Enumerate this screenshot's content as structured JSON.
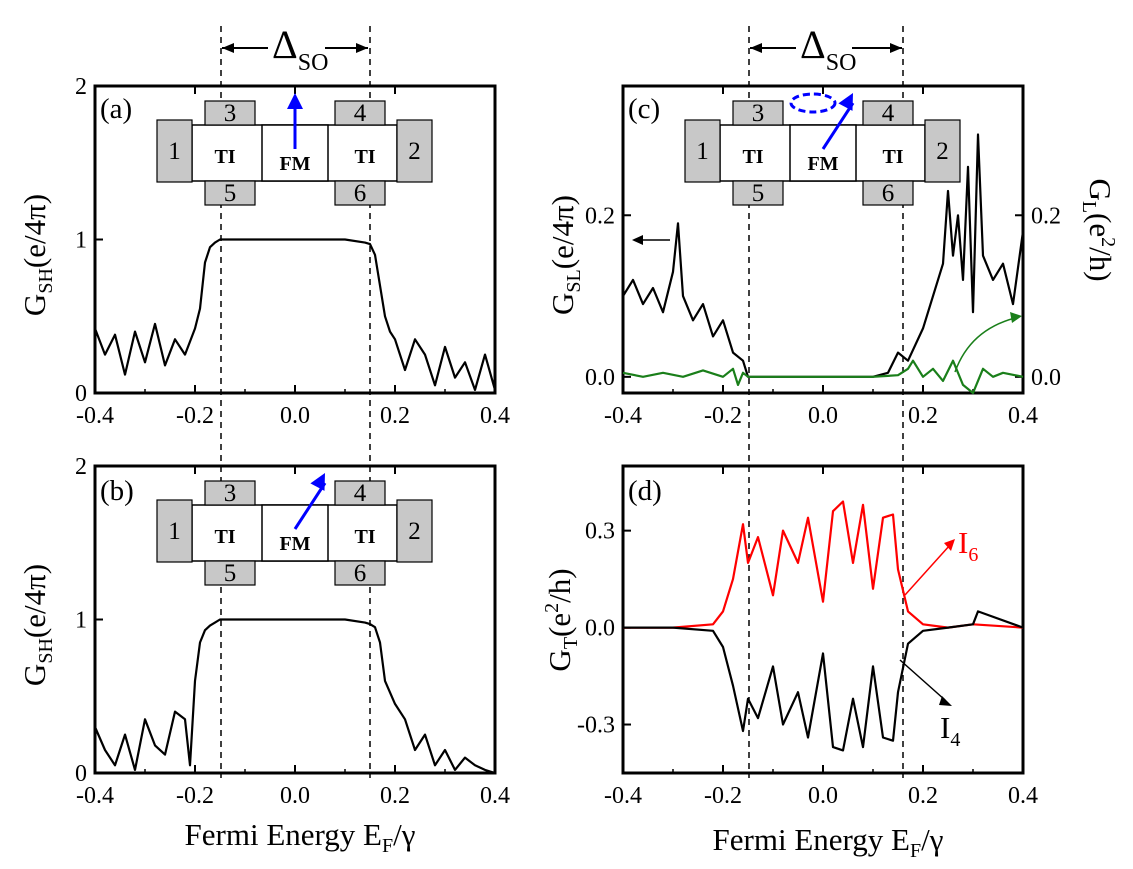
{
  "colors": {
    "black": "#000000",
    "red": "#ff0000",
    "green": "#1a7f1a",
    "blue": "#0000ff",
    "box_gray": "#c8c8c8"
  },
  "delta_so": {
    "symbol": "Δ",
    "sub": "SO"
  },
  "x_axis": {
    "label_main": "Fermi Energy E",
    "label_sub": "F",
    "label_tail": "/γ",
    "ticks": [
      "-0.4",
      "-0.2",
      "0.0",
      "0.2",
      "0.4"
    ]
  },
  "inset": {
    "terminals": [
      "1",
      "2",
      "3",
      "4",
      "5",
      "6"
    ],
    "region_ti": "TI",
    "region_fm": "FM",
    "arrow_icon": "magnetization-arrow-icon"
  },
  "panels": {
    "a": {
      "label": "(a)",
      "y_main": "G",
      "y_sub": "SH",
      "y_tail": "(e/4π)",
      "yticks": [
        "0",
        "1",
        "2"
      ]
    },
    "b": {
      "label": "(b)",
      "y_main": "G",
      "y_sub": "SH",
      "y_tail": "(e/4π)",
      "yticks": [
        "0",
        "1",
        "2"
      ]
    },
    "c": {
      "label": "(c)",
      "y_main": "G",
      "y_sub": "SL",
      "y_tail": "(e/4π)",
      "yticks": [
        "0.0",
        "0.2"
      ],
      "y2_main": "G",
      "y2_sub": "L",
      "y2_tail": "(e",
      "y2_sup": "2",
      "y2_end": "/h)",
      "y2ticks": [
        "0.0",
        "0.2"
      ]
    },
    "d": {
      "label": "(d)",
      "y_main": "G",
      "y_sub": "T",
      "y_tail": "(e",
      "y_sup": "2",
      "y_end": "/h)",
      "yticks": [
        "-0.3",
        "0.0",
        "0.3"
      ],
      "curve_labels": {
        "i6_main": "I",
        "i6_sub": "6",
        "i4_main": "I",
        "i4_sub": "4"
      }
    }
  },
  "chart_data": [
    {
      "panel": "a",
      "type": "line",
      "xlim": [
        -0.4,
        0.4
      ],
      "ylim": [
        0,
        2
      ],
      "vlines": [
        -0.15,
        0.15
      ],
      "series": [
        {
          "color": "#000000",
          "x": [
            -0.4,
            -0.38,
            -0.36,
            -0.34,
            -0.32,
            -0.3,
            -0.28,
            -0.26,
            -0.24,
            -0.22,
            -0.2,
            -0.19,
            -0.18,
            -0.17,
            -0.16,
            -0.15,
            -0.1,
            0.0,
            0.1,
            0.14,
            0.15,
            0.16,
            0.17,
            0.18,
            0.19,
            0.2,
            0.22,
            0.24,
            0.26,
            0.28,
            0.3,
            0.32,
            0.34,
            0.36,
            0.38,
            0.4
          ],
          "y": [
            0.42,
            0.25,
            0.38,
            0.12,
            0.4,
            0.2,
            0.45,
            0.18,
            0.35,
            0.25,
            0.42,
            0.55,
            0.85,
            0.95,
            0.98,
            1.0,
            1.0,
            1.0,
            1.0,
            0.98,
            0.97,
            0.9,
            0.7,
            0.5,
            0.4,
            0.35,
            0.15,
            0.35,
            0.25,
            0.05,
            0.3,
            0.1,
            0.2,
            0.02,
            0.25,
            0.02
          ]
        }
      ]
    },
    {
      "panel": "b",
      "type": "line",
      "xlim": [
        -0.4,
        0.4
      ],
      "ylim": [
        0,
        2
      ],
      "vlines": [
        -0.15,
        0.15
      ],
      "series": [
        {
          "color": "#000000",
          "x": [
            -0.4,
            -0.38,
            -0.36,
            -0.34,
            -0.32,
            -0.3,
            -0.28,
            -0.26,
            -0.24,
            -0.22,
            -0.21,
            -0.2,
            -0.19,
            -0.18,
            -0.17,
            -0.16,
            -0.15,
            -0.1,
            0.0,
            0.1,
            0.14,
            0.15,
            0.16,
            0.17,
            0.18,
            0.2,
            0.22,
            0.24,
            0.26,
            0.28,
            0.3,
            0.32,
            0.34,
            0.36,
            0.38,
            0.4
          ],
          "y": [
            0.3,
            0.15,
            0.05,
            0.25,
            0.02,
            0.35,
            0.18,
            0.12,
            0.4,
            0.35,
            0.05,
            0.6,
            0.85,
            0.93,
            0.96,
            0.98,
            1.0,
            1.0,
            1.0,
            1.0,
            0.98,
            0.97,
            0.95,
            0.85,
            0.6,
            0.45,
            0.35,
            0.15,
            0.25,
            0.05,
            0.15,
            0.02,
            0.1,
            0.05,
            0.02,
            0.0
          ]
        }
      ]
    },
    {
      "panel": "c",
      "type": "line",
      "xlim": [
        -0.4,
        0.4
      ],
      "ylim": [
        -0.02,
        0.36
      ],
      "vlines": [
        -0.16,
        0.15
      ],
      "annotations": [
        {
          "text": "←",
          "target": "left-axis",
          "x": -0.32,
          "y": 0.18
        },
        {
          "target": "right-axis",
          "x": 0.25,
          "y": 0.02
        }
      ],
      "series": [
        {
          "color": "#000000",
          "axis": "left",
          "x": [
            -0.4,
            -0.38,
            -0.36,
            -0.34,
            -0.32,
            -0.3,
            -0.29,
            -0.28,
            -0.26,
            -0.24,
            -0.22,
            -0.2,
            -0.18,
            -0.16,
            -0.15,
            -0.1,
            0.0,
            0.1,
            0.13,
            0.15,
            0.17,
            0.2,
            0.22,
            0.24,
            0.25,
            0.26,
            0.27,
            0.28,
            0.29,
            0.3,
            0.31,
            0.32,
            0.34,
            0.36,
            0.38,
            0.4
          ],
          "y": [
            0.1,
            0.12,
            0.09,
            0.11,
            0.08,
            0.13,
            0.19,
            0.1,
            0.07,
            0.09,
            0.05,
            0.07,
            0.03,
            0.02,
            0.0,
            0.0,
            0.0,
            0.0,
            0.005,
            0.03,
            0.02,
            0.06,
            0.1,
            0.14,
            0.23,
            0.15,
            0.2,
            0.12,
            0.26,
            0.08,
            0.3,
            0.15,
            0.12,
            0.14,
            0.09,
            0.18
          ]
        },
        {
          "color": "#1a7f1a",
          "axis": "right",
          "x": [
            -0.4,
            -0.36,
            -0.32,
            -0.28,
            -0.24,
            -0.2,
            -0.18,
            -0.17,
            -0.16,
            -0.15,
            -0.1,
            0.0,
            0.1,
            0.15,
            0.17,
            0.18,
            0.2,
            0.22,
            0.24,
            0.26,
            0.28,
            0.3,
            0.32,
            0.34,
            0.36,
            0.4
          ],
          "y": [
            0.005,
            0.0,
            0.005,
            0.0,
            0.008,
            0.0,
            0.01,
            -0.01,
            0.005,
            0.0,
            0.0,
            0.0,
            0.0,
            0.002,
            0.01,
            0.02,
            0.0,
            0.01,
            -0.005,
            0.02,
            -0.01,
            -0.02,
            0.01,
            0.0,
            0.005,
            0.0
          ]
        }
      ]
    },
    {
      "panel": "d",
      "type": "line",
      "xlim": [
        -0.4,
        0.4
      ],
      "ylim": [
        -0.45,
        0.5
      ],
      "vlines": [
        -0.16,
        0.15
      ],
      "series": [
        {
          "name": "I6",
          "color": "#ff0000",
          "x": [
            -0.4,
            -0.3,
            -0.22,
            -0.2,
            -0.18,
            -0.16,
            -0.15,
            -0.13,
            -0.1,
            -0.08,
            -0.05,
            -0.03,
            0.0,
            0.02,
            0.04,
            0.06,
            0.08,
            0.1,
            0.12,
            0.14,
            0.15,
            0.17,
            0.2,
            0.25,
            0.3,
            0.4
          ],
          "y": [
            0.0,
            0.0,
            0.01,
            0.05,
            0.15,
            0.32,
            0.2,
            0.28,
            0.1,
            0.3,
            0.2,
            0.34,
            0.08,
            0.36,
            0.39,
            0.2,
            0.38,
            0.12,
            0.34,
            0.35,
            0.18,
            0.05,
            0.01,
            0.0,
            0.01,
            0.0
          ]
        },
        {
          "name": "I4",
          "color": "#000000",
          "x": [
            -0.4,
            -0.3,
            -0.22,
            -0.2,
            -0.18,
            -0.16,
            -0.15,
            -0.13,
            -0.1,
            -0.08,
            -0.05,
            -0.03,
            0.0,
            0.02,
            0.04,
            0.06,
            0.08,
            0.1,
            0.12,
            0.14,
            0.15,
            0.17,
            0.2,
            0.25,
            0.3,
            0.31,
            0.4
          ],
          "y": [
            0.0,
            0.0,
            -0.01,
            -0.06,
            -0.18,
            -0.32,
            -0.22,
            -0.28,
            -0.12,
            -0.3,
            -0.2,
            -0.34,
            -0.08,
            -0.37,
            -0.38,
            -0.22,
            -0.37,
            -0.12,
            -0.34,
            -0.35,
            -0.2,
            -0.05,
            -0.01,
            0.0,
            0.01,
            0.05,
            0.0
          ]
        }
      ]
    }
  ]
}
